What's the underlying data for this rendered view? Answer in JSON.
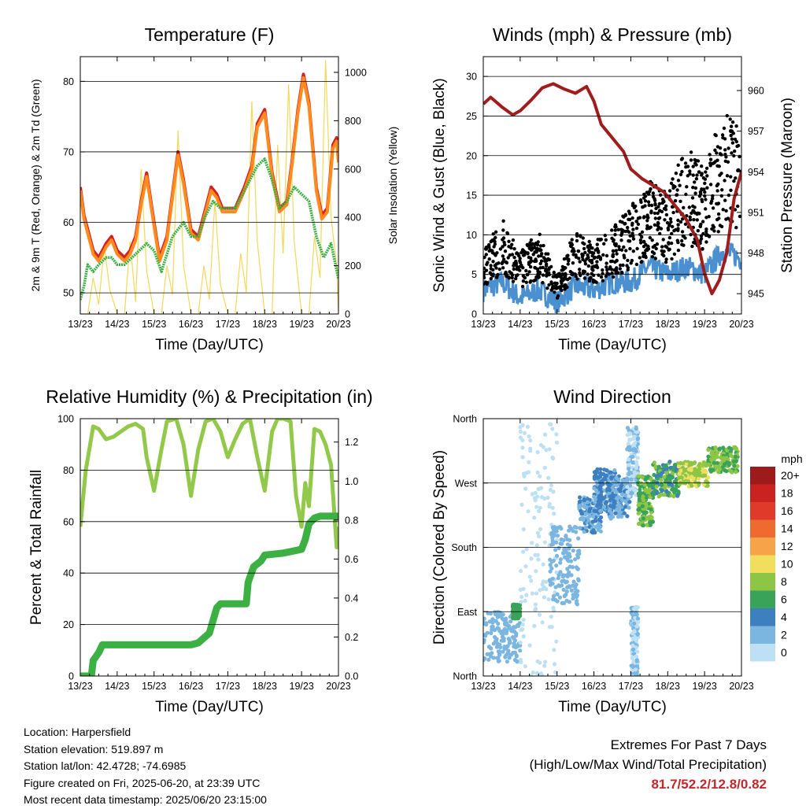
{
  "chart_data": [
    {
      "type": "line",
      "title": "Temperature (F)",
      "xlabel": "Time (Day/UTC)",
      "ylabel": "2m & 9m T (Red, Orange) & 2m Td (Green)",
      "y2label": "Solar Insolation (Yellow)",
      "x_ticks": [
        "13/23",
        "14/23",
        "15/23",
        "16/23",
        "17/23",
        "18/23",
        "19/23",
        "20/23"
      ],
      "xlim": [
        0,
        7
      ],
      "ylim": [
        47,
        83.5
      ],
      "yticks": [
        50,
        60,
        70,
        80
      ],
      "y2lim": [
        0,
        1065
      ],
      "y2ticks": [
        0,
        200,
        400,
        600,
        800,
        1000
      ],
      "grid": true,
      "series": [
        {
          "name": "2m T",
          "color": "#d42020",
          "axis": "left",
          "x": [
            0,
            0.1,
            0.2,
            0.35,
            0.5,
            0.7,
            0.85,
            1.0,
            1.2,
            1.35,
            1.5,
            1.65,
            1.8,
            2.0,
            2.15,
            2.35,
            2.5,
            2.65,
            2.8,
            3.0,
            3.2,
            3.4,
            3.55,
            3.7,
            3.85,
            4.0,
            4.2,
            4.45,
            4.65,
            4.8,
            5.0,
            5.2,
            5.4,
            5.6,
            5.75,
            5.9,
            6.05,
            6.2,
            6.4,
            6.55,
            6.7,
            6.85,
            6.95,
            7.0
          ],
          "y": [
            65,
            61,
            59,
            56,
            55,
            57,
            58,
            56,
            55,
            56,
            58,
            63,
            67,
            60,
            55,
            58,
            64,
            70,
            66,
            59,
            58,
            62,
            65,
            64,
            62,
            62,
            62,
            65,
            68,
            74,
            76,
            67,
            62,
            63,
            69,
            76,
            81,
            77,
            65,
            61,
            62,
            71,
            72,
            69
          ]
        },
        {
          "name": "9m T",
          "color": "#ff8a1e",
          "axis": "left",
          "x": [
            0,
            0.1,
            0.2,
            0.35,
            0.5,
            0.7,
            0.85,
            1.0,
            1.2,
            1.35,
            1.5,
            1.65,
            1.8,
            2.0,
            2.15,
            2.35,
            2.5,
            2.65,
            2.8,
            3.0,
            3.2,
            3.4,
            3.55,
            3.7,
            3.85,
            4.0,
            4.2,
            4.45,
            4.65,
            4.8,
            5.0,
            5.2,
            5.4,
            5.6,
            5.75,
            5.9,
            6.05,
            6.2,
            6.4,
            6.55,
            6.7,
            6.85,
            6.95,
            7.0
          ],
          "y": [
            64.5,
            60.5,
            58.5,
            55.5,
            54.5,
            56.5,
            57.5,
            55.5,
            54.5,
            55.5,
            57.5,
            62.5,
            66.5,
            59.5,
            54.5,
            57.5,
            63.5,
            69.5,
            65.5,
            58.5,
            57.5,
            61.5,
            64.5,
            63.5,
            61.5,
            61.5,
            61.5,
            64.5,
            67.5,
            73.5,
            75.5,
            66.5,
            61.5,
            62.5,
            68.5,
            75.5,
            80.5,
            76.5,
            64.5,
            60.5,
            61.5,
            70.5,
            71.5,
            68.5
          ]
        },
        {
          "name": "2m Td",
          "color": "#3cb043",
          "axis": "left",
          "x": [
            0,
            0.1,
            0.2,
            0.35,
            0.5,
            0.7,
            0.85,
            1.0,
            1.2,
            1.4,
            1.6,
            1.8,
            2.0,
            2.2,
            2.5,
            2.8,
            3.0,
            3.2,
            3.4,
            3.6,
            3.8,
            4.0,
            4.2,
            4.4,
            4.6,
            4.8,
            5.0,
            5.2,
            5.4,
            5.6,
            5.8,
            6.0,
            6.2,
            6.4,
            6.6,
            6.8,
            7.0
          ],
          "y": [
            49,
            51,
            54,
            53,
            54,
            55,
            55,
            54,
            54,
            55,
            56,
            57,
            56,
            53,
            58,
            60,
            58,
            58,
            61,
            63,
            62,
            62,
            62,
            64,
            66,
            68,
            69,
            66,
            62,
            63,
            65,
            64,
            63,
            58,
            55,
            57,
            52
          ]
        },
        {
          "name": "Solar Insolation",
          "color": "#f5d85a",
          "axis": "right",
          "x": [
            0,
            0.2,
            0.35,
            0.5,
            0.65,
            0.8,
            1.0,
            1.2,
            1.35,
            1.5,
            1.65,
            1.8,
            2.0,
            2.2,
            2.35,
            2.5,
            2.65,
            2.8,
            3.0,
            3.2,
            3.35,
            3.5,
            3.65,
            3.8,
            4.0,
            4.2,
            4.35,
            4.5,
            4.65,
            4.8,
            5.0,
            5.2,
            5.35,
            5.5,
            5.65,
            5.8,
            6.0,
            6.2,
            6.35,
            6.5,
            6.65,
            6.8,
            6.95,
            7.0
          ],
          "y": [
            0,
            0,
            150,
            40,
            280,
            100,
            0,
            0,
            300,
            50,
            600,
            180,
            0,
            0,
            200,
            80,
            760,
            200,
            0,
            0,
            200,
            60,
            470,
            120,
            0,
            0,
            250,
            90,
            880,
            300,
            0,
            0,
            700,
            250,
            950,
            300,
            0,
            0,
            320,
            150,
            1050,
            400,
            200,
            0
          ]
        }
      ]
    },
    {
      "type": "scatter",
      "title": "Winds (mph) & Pressure (mb)",
      "xlabel": "Time (Day/UTC)",
      "ylabel": "Sonic Wind & Gust (Blue, Black)",
      "y2label": "Station Pressure (Maroon)",
      "x_ticks": [
        "13/23",
        "14/23",
        "15/23",
        "16/23",
        "17/23",
        "18/23",
        "19/23",
        "20/23"
      ],
      "xlim": [
        0,
        7
      ],
      "ylim": [
        0,
        32.5
      ],
      "yticks": [
        0,
        5,
        10,
        15,
        20,
        25,
        30
      ],
      "y2lim": [
        943.5,
        962.5
      ],
      "y2ticks": [
        945,
        948,
        951,
        954,
        957,
        960
      ],
      "grid": true,
      "series": [
        {
          "name": "Sonic Wind",
          "color": "#4a90d0",
          "kind": "band",
          "x": [
            0,
            0.5,
            1.0,
            1.5,
            2.0,
            2.5,
            3.0,
            3.5,
            4.0,
            4.5,
            5.0,
            5.5,
            6.0,
            6.5,
            7.0
          ],
          "y": [
            3,
            4,
            2,
            3,
            1.5,
            3.5,
            3,
            4,
            4,
            6,
            5,
            6,
            5,
            8,
            7
          ]
        },
        {
          "name": "Gust",
          "color": "#000000",
          "kind": "points",
          "x": [
            0,
            0.5,
            1.0,
            1.5,
            2.0,
            2.5,
            3.0,
            3.5,
            4.0,
            4.5,
            5.0,
            5.5,
            6.0,
            6.5,
            7.0
          ],
          "y": [
            5,
            8,
            5,
            7,
            3,
            7,
            6,
            7,
            9,
            11,
            10,
            14,
            12,
            17,
            15
          ]
        },
        {
          "name": "Station Pressure",
          "color": "#a01d1d",
          "axis": "right",
          "x": [
            0,
            0.2,
            0.5,
            0.8,
            1.0,
            1.3,
            1.6,
            1.9,
            2.2,
            2.5,
            2.8,
            3.0,
            3.2,
            3.5,
            3.8,
            4.0,
            4.3,
            4.6,
            4.9,
            5.2,
            5.5,
            5.8,
            6.0,
            6.2,
            6.4,
            6.6,
            6.8,
            7.0
          ],
          "y": [
            959,
            959.5,
            958.8,
            958.2,
            958.5,
            959.3,
            960.2,
            960.5,
            960.1,
            959.8,
            960.3,
            959.2,
            957.5,
            956.5,
            955.5,
            954.2,
            953.5,
            953,
            952.5,
            951.5,
            950.5,
            949,
            946.5,
            945,
            946,
            948,
            952,
            954
          ]
        }
      ]
    },
    {
      "type": "line",
      "title": "Relative Humidity (%) & Precipitation (in)",
      "xlabel": "Time (Day/UTC)",
      "ylabel": "Percent & Total Rainfall",
      "x_ticks": [
        "13/23",
        "14/23",
        "15/23",
        "16/23",
        "17/23",
        "18/23",
        "19/23",
        "20/23"
      ],
      "xlim": [
        0,
        7
      ],
      "ylim": [
        0,
        100
      ],
      "yticks": [
        0,
        20,
        40,
        60,
        80,
        100
      ],
      "y2lim": [
        0,
        1.32
      ],
      "y2ticks": [
        0.0,
        0.2,
        0.4,
        0.6,
        0.8,
        1.0,
        1.2
      ],
      "grid": true,
      "series": [
        {
          "name": "Relative Humidity",
          "color": "#93c94a",
          "axis": "left",
          "x": [
            0,
            0.15,
            0.35,
            0.5,
            0.7,
            0.9,
            1.1,
            1.3,
            1.5,
            1.7,
            1.8,
            2.0,
            2.2,
            2.35,
            2.6,
            2.8,
            3.0,
            3.2,
            3.4,
            3.6,
            3.8,
            4.0,
            4.2,
            4.4,
            4.6,
            4.8,
            5.0,
            5.2,
            5.35,
            5.5,
            5.7,
            5.85,
            6.0,
            6.1,
            6.2,
            6.35,
            6.5,
            6.65,
            6.8,
            6.95,
            7.0
          ],
          "y": [
            58,
            80,
            97,
            96,
            92,
            93,
            95,
            97,
            98,
            96,
            85,
            72,
            88,
            99,
            100,
            90,
            70,
            88,
            99,
            100,
            95,
            85,
            92,
            98,
            100,
            85,
            72,
            95,
            100,
            100,
            99,
            70,
            58,
            75,
            66,
            96,
            95,
            90,
            82,
            50,
            58
          ]
        },
        {
          "name": "Total Rainfall",
          "color": "#3cb043",
          "axis": "right",
          "x": [
            0,
            0.3,
            0.35,
            0.5,
            0.6,
            1.0,
            1.5,
            2.0,
            2.5,
            3.0,
            3.2,
            3.5,
            3.7,
            3.8,
            4.0,
            4.5,
            4.55,
            4.7,
            4.9,
            5.0,
            5.5,
            6.0,
            6.1,
            6.2,
            6.35,
            6.5,
            6.8,
            7.0
          ],
          "y": [
            0,
            0,
            0.08,
            0.12,
            0.16,
            0.16,
            0.16,
            0.16,
            0.16,
            0.16,
            0.17,
            0.22,
            0.35,
            0.37,
            0.37,
            0.37,
            0.48,
            0.56,
            0.59,
            0.62,
            0.63,
            0.65,
            0.7,
            0.78,
            0.81,
            0.82,
            0.82,
            0.82
          ]
        }
      ]
    },
    {
      "type": "scatter",
      "title": "Wind Direction",
      "xlabel": "Time (Day/UTC)",
      "ylabel": "Direction (Colored By Speed)",
      "x_ticks": [
        "13/23",
        "14/23",
        "15/23",
        "16/23",
        "17/23",
        "18/23",
        "19/23",
        "20/23"
      ],
      "xlim": [
        0,
        7
      ],
      "ylim": [
        0,
        360
      ],
      "y_tick_labels": [
        "North",
        "East",
        "South",
        "West",
        "North"
      ],
      "y_tick_values": [
        0,
        90,
        180,
        270,
        360
      ],
      "grid": true,
      "clusters": [
        {
          "x": [
            0,
            1.0
          ],
          "dir": [
            20,
            90
          ],
          "speed": [
            2,
            4
          ]
        },
        {
          "x": [
            0.8,
            1.0
          ],
          "dir": [
            80,
            100
          ],
          "speed": [
            6,
            7
          ]
        },
        {
          "x": [
            1.0,
            2.0
          ],
          "dir": [
            0,
            360
          ],
          "speed": [
            0,
            2
          ]
        },
        {
          "x": [
            1.8,
            2.6
          ],
          "dir": [
            100,
            210
          ],
          "speed": [
            2,
            4
          ]
        },
        {
          "x": [
            2.6,
            3.2
          ],
          "dir": [
            200,
            250
          ],
          "speed": [
            3,
            5
          ]
        },
        {
          "x": [
            3.0,
            3.6
          ],
          "dir": [
            230,
            290
          ],
          "speed": [
            3,
            6
          ]
        },
        {
          "x": [
            3.4,
            4.0
          ],
          "dir": [
            220,
            280
          ],
          "speed": [
            3,
            5
          ]
        },
        {
          "x": [
            3.9,
            4.2
          ],
          "dir": [
            250,
            350
          ],
          "speed": [
            1,
            3
          ]
        },
        {
          "x": [
            4.0,
            4.2
          ],
          "dir": [
            0,
            100
          ],
          "speed": [
            1,
            3
          ]
        },
        {
          "x": [
            4.2,
            4.6
          ],
          "dir": [
            210,
            280
          ],
          "speed": [
            6,
            10
          ]
        },
        {
          "x": [
            4.6,
            5.3
          ],
          "dir": [
            250,
            300
          ],
          "speed": [
            5,
            9
          ]
        },
        {
          "x": [
            5.3,
            6.1
          ],
          "dir": [
            265,
            300
          ],
          "speed": [
            8,
            11
          ]
        },
        {
          "x": [
            6.1,
            6.9
          ],
          "dir": [
            285,
            320
          ],
          "speed": [
            6,
            10
          ]
        }
      ],
      "colorbar": {
        "unit": "mph",
        "labels": [
          "20+",
          "18",
          "16",
          "14",
          "12",
          "10",
          "8",
          "6",
          "4",
          "2",
          "0"
        ],
        "colors": [
          "#9e1b1b",
          "#c9221f",
          "#df3a2a",
          "#ee6a2e",
          "#f6a34a",
          "#f0de5c",
          "#8dc544",
          "#3aa35a",
          "#3e7fc0",
          "#7ab6e0",
          "#bee0f4"
        ]
      }
    }
  ],
  "info": {
    "location": "Location: Harpersfield",
    "elevation": "Station elevation: 519.897 m",
    "latlon": "Station lat/lon: 42.4728; -74.6985",
    "created": "Figure created on Fri, 2025-06-20, at 23:39 UTC",
    "recent": "Most recent data timestamp: 2025/06/20 23:15:00"
  },
  "extremes": {
    "title": "Extremes For Past 7 Days",
    "subtitle": "(High/Low/Max Wind/Total Precipitation)",
    "values": "81.7/52.2/12.8/0.82"
  }
}
